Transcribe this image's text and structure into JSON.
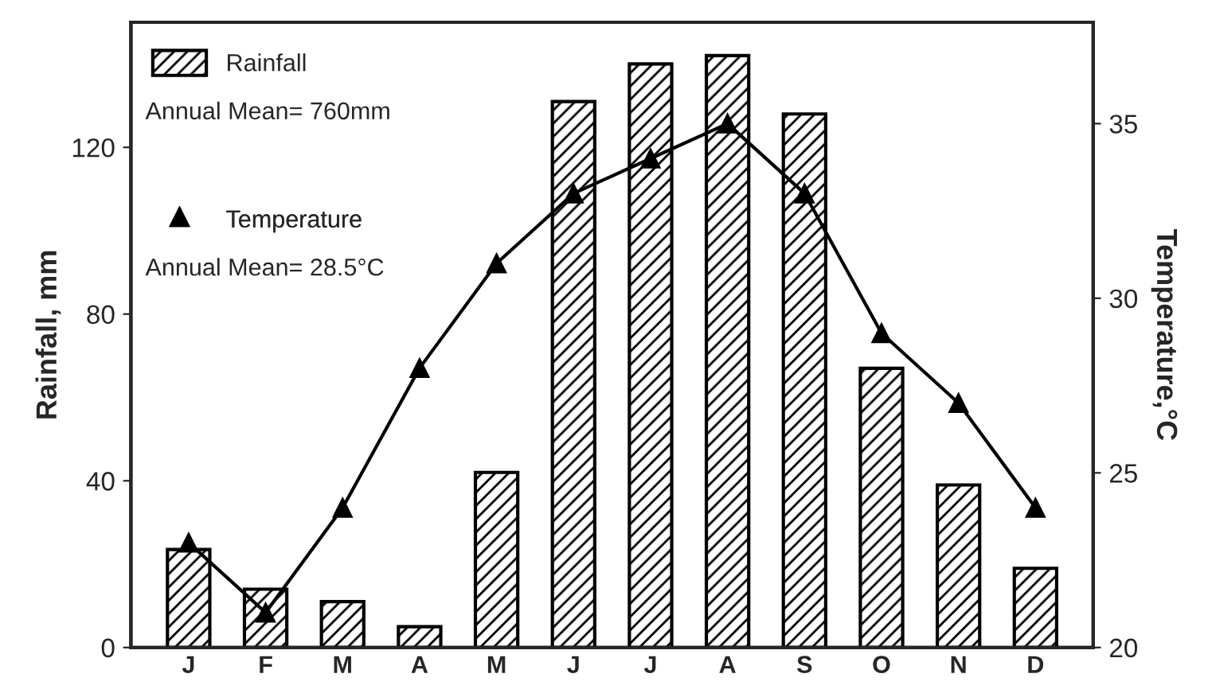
{
  "chart_data": {
    "type": "bar",
    "categories": [
      "J",
      "F",
      "M",
      "A",
      "M",
      "J",
      "J",
      "A",
      "S",
      "O",
      "N",
      "D"
    ],
    "series": [
      {
        "name": "Rainfall",
        "color": "#000000",
        "values": [
          23.5,
          14,
          11,
          5,
          42,
          131,
          140,
          142,
          128,
          67,
          39,
          19
        ]
      },
      {
        "name": "Temperature",
        "type": "line",
        "axis": "y2",
        "color": "#000000",
        "values": [
          23,
          21,
          24,
          28,
          31,
          33,
          34,
          35,
          33,
          29,
          27,
          24
        ]
      }
    ],
    "ylabel": "Rainfall, mm",
    "y2label": "Temperature,°C",
    "ylim": [
      0,
      150
    ],
    "yticks": [
      0,
      40,
      80,
      120
    ],
    "y2lim": [
      20,
      37.9
    ],
    "y2ticks": [
      20,
      25,
      30,
      35
    ],
    "annotations": [
      "Annual Mean= 760mm",
      "Annual Mean= 28.5°C"
    ],
    "legend": "top left",
    "marker": "triangle",
    "line_style": "solid",
    "grid": false
  }
}
